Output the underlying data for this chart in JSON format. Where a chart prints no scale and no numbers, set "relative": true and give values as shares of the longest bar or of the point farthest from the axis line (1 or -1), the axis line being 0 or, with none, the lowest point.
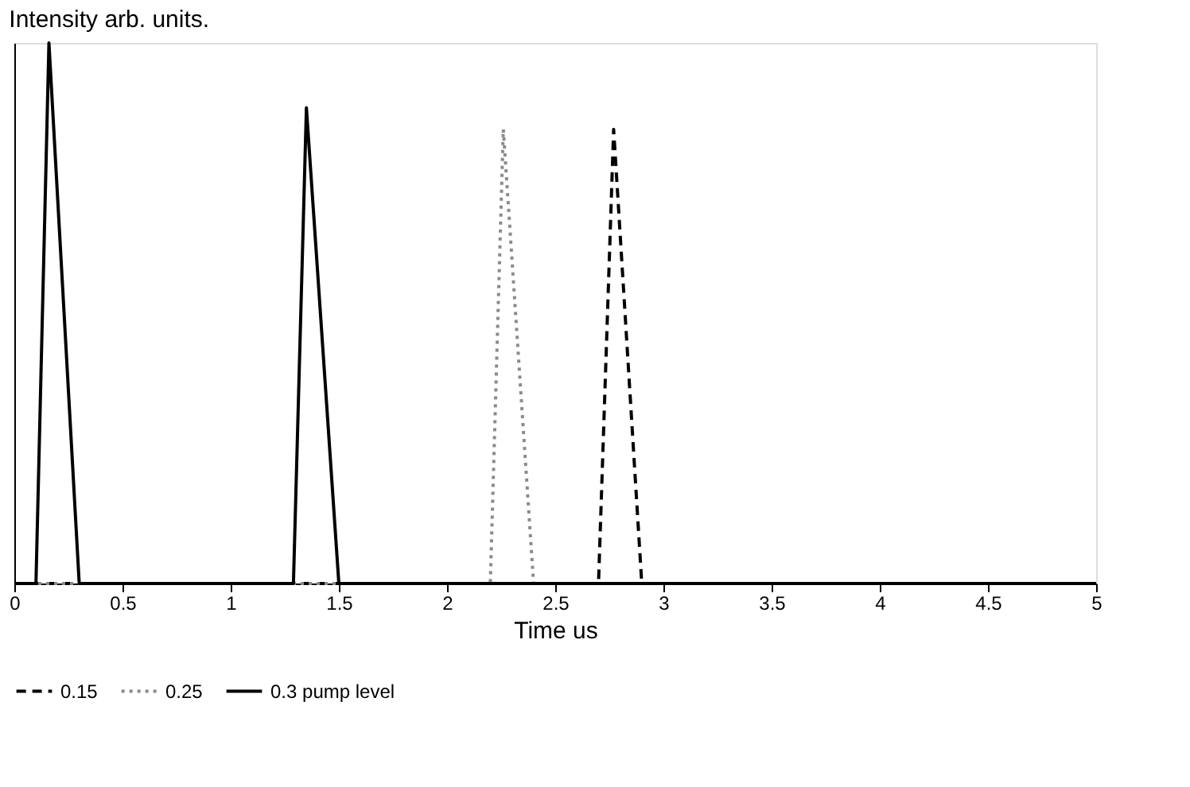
{
  "chart_data": {
    "type": "line",
    "title": "Intensity arb. units.",
    "xlabel": "Time us",
    "relative": true,
    "xlim": [
      0,
      5
    ],
    "xticks": [
      0,
      0.5,
      1,
      1.5,
      2,
      2.5,
      3,
      3.5,
      4,
      4.5,
      5
    ],
    "grid": false,
    "legend": "bottom",
    "marker": "none",
    "series": [
      {
        "name": "0.15",
        "color": "#000000",
        "line_style": "dashed",
        "x": [
          0,
          2.7,
          2.77,
          2.9,
          5
        ],
        "values": [
          0,
          0,
          0.84,
          0,
          0
        ]
      },
      {
        "name": "0.25",
        "color": "#8a8a8a",
        "line_style": "dotted",
        "x": [
          0,
          2.2,
          2.26,
          2.4,
          5
        ],
        "values": [
          0,
          0,
          0.84,
          0,
          0
        ]
      },
      {
        "name": "0.3 pump level",
        "color": "#000000",
        "line_style": "solid",
        "x": [
          0,
          0.1,
          0.16,
          0.3,
          1.29,
          1.35,
          1.5,
          5
        ],
        "values": [
          0,
          0,
          1,
          0,
          0,
          0.88,
          0,
          0
        ]
      }
    ]
  }
}
